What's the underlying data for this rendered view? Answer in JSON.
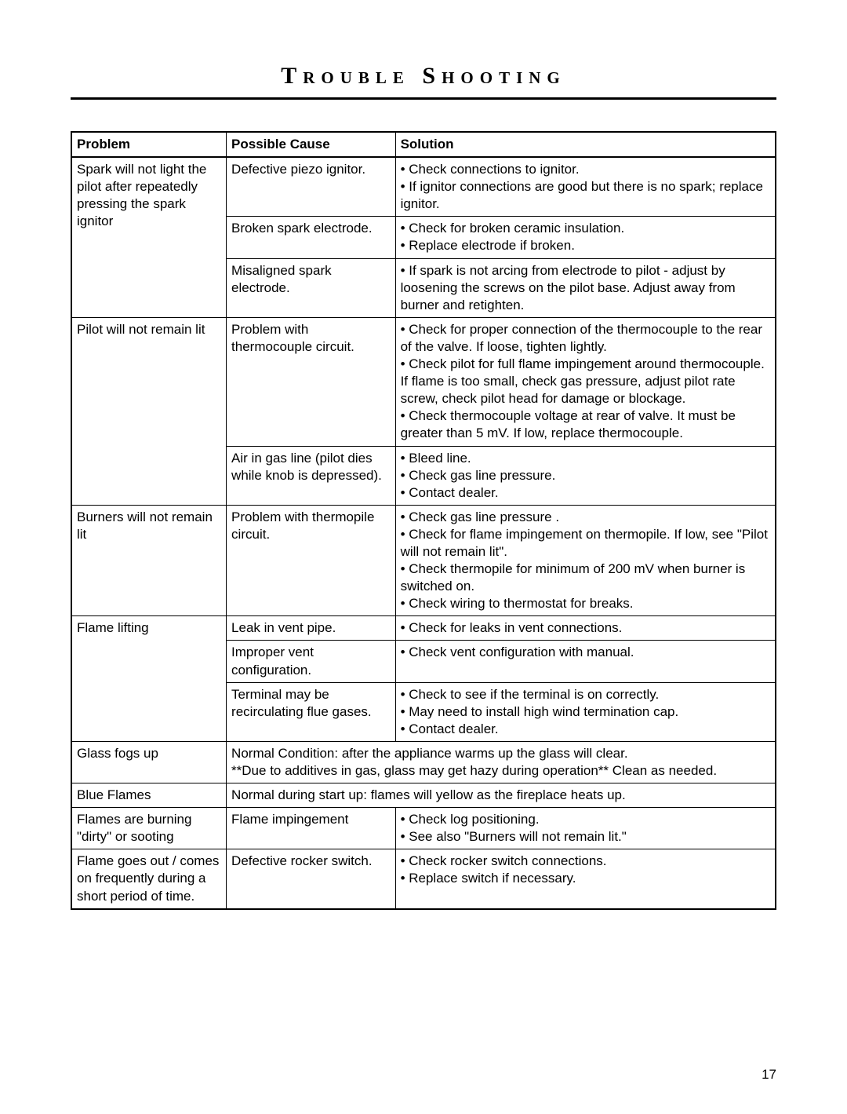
{
  "title": "Trouble Shooting",
  "page_number": "17",
  "columns": [
    "Problem",
    "Possible Cause",
    "Solution"
  ],
  "rows": [
    {
      "type": "normal",
      "problem": "Spark will not light the pilot after repeatedly pressing the spark ignitor",
      "cause": "Defective piezo ignitor.",
      "solution": "• Check connections to ignitor.\n• If ignitor connections are good but there is no spark; replace ignitor.",
      "problem_rowspan": 3
    },
    {
      "type": "normal",
      "cause": "Broken spark electrode.",
      "solution": "• Check for broken ceramic insulation.\n• Replace electrode if broken."
    },
    {
      "type": "normal",
      "cause": "Misaligned spark electrode.",
      "solution": "• If spark is not arcing from electrode to pilot - adjust by loosening the screws on the pilot base. Adjust away from burner and retighten."
    },
    {
      "type": "normal",
      "problem": "Pilot will not remain lit",
      "cause": "Problem with thermocouple circuit.",
      "solution": "• Check for proper connection of the thermocouple to the rear of the valve. If loose, tighten lightly.\n• Check pilot for full flame impingement around thermocouple.  If flame is too small, check gas pressure, adjust pilot rate screw, check pilot head for damage or blockage.\n• Check thermocouple voltage at rear of valve. It must be greater than 5 mV.  If low, replace thermocouple.",
      "problem_rowspan": 2
    },
    {
      "type": "normal",
      "cause": "Air in gas line (pilot dies while knob is depressed).",
      "solution": "• Bleed line.\n• Check gas line pressure.\n• Contact dealer."
    },
    {
      "type": "normal",
      "problem": "Burners will not remain lit",
      "cause": "Problem with thermopile circuit.",
      "solution": "• Check gas line pressure .\n• Check for flame impingement on thermopile. If low, see \"Pilot will not remain lit\".\n• Check thermopile for minimum of 200 mV when burner is switched on.\n• Check wiring to thermostat for breaks.",
      "problem_rowspan": 1
    },
    {
      "type": "normal",
      "problem": "Flame lifting",
      "cause": "Leak in vent pipe.",
      "solution": "• Check for leaks in vent connections.",
      "problem_rowspan": 3
    },
    {
      "type": "normal",
      "cause": "Improper vent configuration.",
      "solution": "• Check vent configuration with manual."
    },
    {
      "type": "normal",
      "cause": "Terminal may be recirculating flue gases.",
      "solution": "• Check to see if the terminal is on correctly.\n• May need to install high wind termination cap.\n• Contact dealer."
    },
    {
      "type": "merged",
      "problem": "Glass fogs up",
      "merged": "Normal Condition: after the appliance warms up the glass will clear.\n**Due to additives in gas, glass may get hazy during operation** Clean as needed."
    },
    {
      "type": "merged",
      "problem": "Blue Flames",
      "merged": "Normal during start up: flames will yellow as the fireplace heats up."
    },
    {
      "type": "normal",
      "problem": "Flames are burning \"dirty\" or sooting",
      "cause": "Flame impingement",
      "solution": "• Check log positioning.\n• See also \"Burners will not remain lit.\"",
      "problem_rowspan": 1
    },
    {
      "type": "normal",
      "problem": "Flame goes out / comes on frequently during a short period of time.",
      "cause": "Defective rocker switch.",
      "solution": "• Check rocker switch connections.\n• Replace switch if necessary.",
      "problem_rowspan": 1
    }
  ]
}
